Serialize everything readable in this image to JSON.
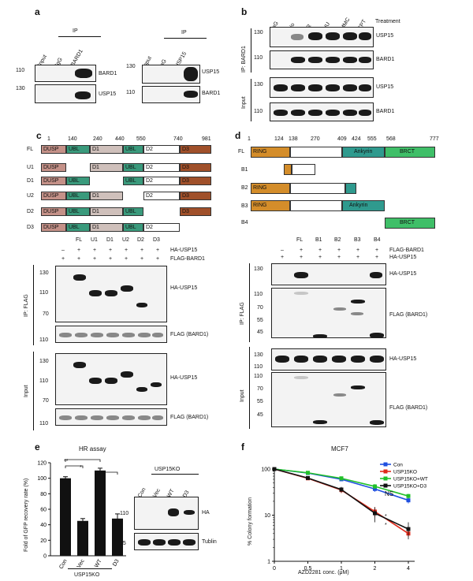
{
  "panel_a": {
    "letter": "a",
    "ip_label": "IP",
    "left": {
      "lanes": [
        "Input",
        "IgG",
        "BARD1"
      ],
      "mw": [
        "110",
        "130"
      ],
      "rows": [
        "BARD1",
        "USP15"
      ]
    },
    "right": {
      "lanes": [
        "Input",
        "IgG",
        "USP15"
      ],
      "mw": [
        "130",
        "110"
      ],
      "rows": [
        "USP15",
        "BARD1"
      ]
    }
  },
  "panel_b": {
    "letter": "b",
    "lanes": [
      "IgG",
      "No",
      "IR",
      "HU",
      "MMC",
      "CPT"
    ],
    "treatment_label": "Treatment",
    "ip_label": "IP: BARD1",
    "input_label": "Input",
    "mw": [
      "130",
      "110",
      "130",
      "110"
    ],
    "rows": [
      "USP15",
      "BARD1",
      "USP15",
      "BARD1"
    ]
  },
  "panel_c": {
    "letter": "c",
    "positions": [
      "1",
      "140",
      "240",
      "440",
      "550",
      "740",
      "981"
    ],
    "constructs": [
      {
        "name": "FL",
        "domains": [
          "DUSP",
          "UBL",
          "D1",
          "UBL",
          "D2",
          "D3"
        ]
      },
      {
        "name": "U1",
        "domains": [
          "DUSP",
          "D1",
          "UBL",
          "D2",
          "D3"
        ]
      },
      {
        "name": "D1",
        "domains": [
          "DUSP",
          "UBL",
          "UBL",
          "D2",
          "D3"
        ]
      },
      {
        "name": "U2",
        "domains": [
          "DUSP",
          "UBL",
          "D1",
          "D2",
          "D3"
        ]
      },
      {
        "name": "D2",
        "domains": [
          "DUSP",
          "UBL",
          "D1",
          "UBL",
          "D3"
        ]
      },
      {
        "name": "D3",
        "domains": [
          "DUSP",
          "UBL",
          "D1",
          "UBL",
          "D2"
        ]
      }
    ],
    "lanes": [
      "FL",
      "U1",
      "D1",
      "U2",
      "D2",
      "D3"
    ],
    "ha_row": {
      "label": "HA-USP15",
      "signs": [
        "–",
        "+",
        "+",
        "+",
        "+",
        "+",
        "+"
      ]
    },
    "flag_row": {
      "label": "FLAG-BARD1",
      "signs": [
        "+",
        "+",
        "+",
        "+",
        "+",
        "+",
        "+"
      ]
    },
    "ip_label": "IP: FLAG",
    "input_label": "Input",
    "mw_ip": [
      "130",
      "110",
      "70"
    ],
    "mw_flag": "110",
    "mw_input": [
      "130",
      "110",
      "70"
    ],
    "mw_flag2": "110",
    "rows": [
      "HA-USP15",
      "FLAG (BARD1)",
      "HA-USP15",
      "FLAG (BARD1)"
    ]
  },
  "panel_d": {
    "letter": "d",
    "positions": [
      "1",
      "124",
      "138",
      "270",
      "409",
      "424",
      "555",
      "568",
      "777"
    ],
    "constructs": [
      {
        "name": "FL",
        "domains": [
          "RING",
          "Ankyrin",
          "BRCT"
        ]
      },
      {
        "name": "B1",
        "domains": []
      },
      {
        "name": "B2",
        "domains": [
          "RING"
        ]
      },
      {
        "name": "B3",
        "domains": [
          "RING",
          "Ankyrin"
        ]
      },
      {
        "name": "B4",
        "domains": [
          "BRCT"
        ]
      }
    ],
    "lanes": [
      "FL",
      "B1",
      "B2",
      "B3",
      "B4"
    ],
    "flag_row": {
      "label": "FLAG-BARD1",
      "signs": [
        "–",
        "+",
        "+",
        "+",
        "+",
        "+"
      ]
    },
    "ha_row": {
      "label": "HA-USP15",
      "signs": [
        "+",
        "+",
        "+",
        "+",
        "+",
        "+"
      ]
    },
    "ip_label": "IP: FLAG",
    "input_label": "Input",
    "mw_ip1": "130",
    "mw_ip2": [
      "110",
      "70",
      "55",
      "45"
    ],
    "mw_in1": [
      "130",
      "110"
    ],
    "mw_in2": [
      "110",
      "70",
      "55",
      "45"
    ],
    "rows": [
      "HA-USP15",
      "FLAG (BARD1)",
      "HA-USP15",
      "FLAG (BARD1)"
    ]
  },
  "panel_e": {
    "letter": "e",
    "title": "HR assay",
    "ylabel": "Fold of GFP recovery rate (%)",
    "yticks": [
      "0",
      "20",
      "40",
      "60",
      "80",
      "100",
      "120"
    ],
    "categories": [
      "Con",
      "Vec",
      "WT",
      "D3"
    ],
    "values": [
      100,
      45,
      110,
      48
    ],
    "errors": [
      2,
      3,
      3,
      6
    ],
    "ylim": [
      0,
      120
    ],
    "group_label": "USP15KO",
    "sig": [
      "**",
      "*",
      "*"
    ],
    "blot_group": "USP15KO",
    "blot_lanes": [
      "Con",
      "Vec",
      "WT",
      "D3"
    ],
    "mw": [
      "110",
      "55"
    ],
    "rows": [
      "HA",
      "Tublin"
    ]
  },
  "chart_data": {
    "type": "line",
    "title": "MCF7",
    "xlabel": "AZD2281 conc. (μM)",
    "ylabel": "% Colony formation",
    "yscale": "log",
    "ylim": [
      1,
      100
    ],
    "xticks": [
      "0",
      "0.5",
      "1",
      "2",
      "4"
    ],
    "yticks": [
      "1",
      "10",
      "100"
    ],
    "x": [
      0,
      0.5,
      1,
      2,
      4
    ],
    "series": [
      {
        "name": "Con",
        "color": "#1f4fe0",
        "values": [
          100,
          82,
          60,
          37,
          21
        ]
      },
      {
        "name": "USP15KO",
        "color": "#e02a1a",
        "values": [
          100,
          63,
          35,
          12,
          4
        ]
      },
      {
        "name": "USP15KO+WT",
        "color": "#22c02a",
        "values": [
          100,
          83,
          63,
          42,
          26
        ]
      },
      {
        "name": "USP15KO+D3",
        "color": "#111111",
        "values": [
          100,
          64,
          36,
          11,
          5
        ]
      }
    ],
    "annotations": [
      "NS",
      "*",
      "*"
    ],
    "letter": "f"
  }
}
